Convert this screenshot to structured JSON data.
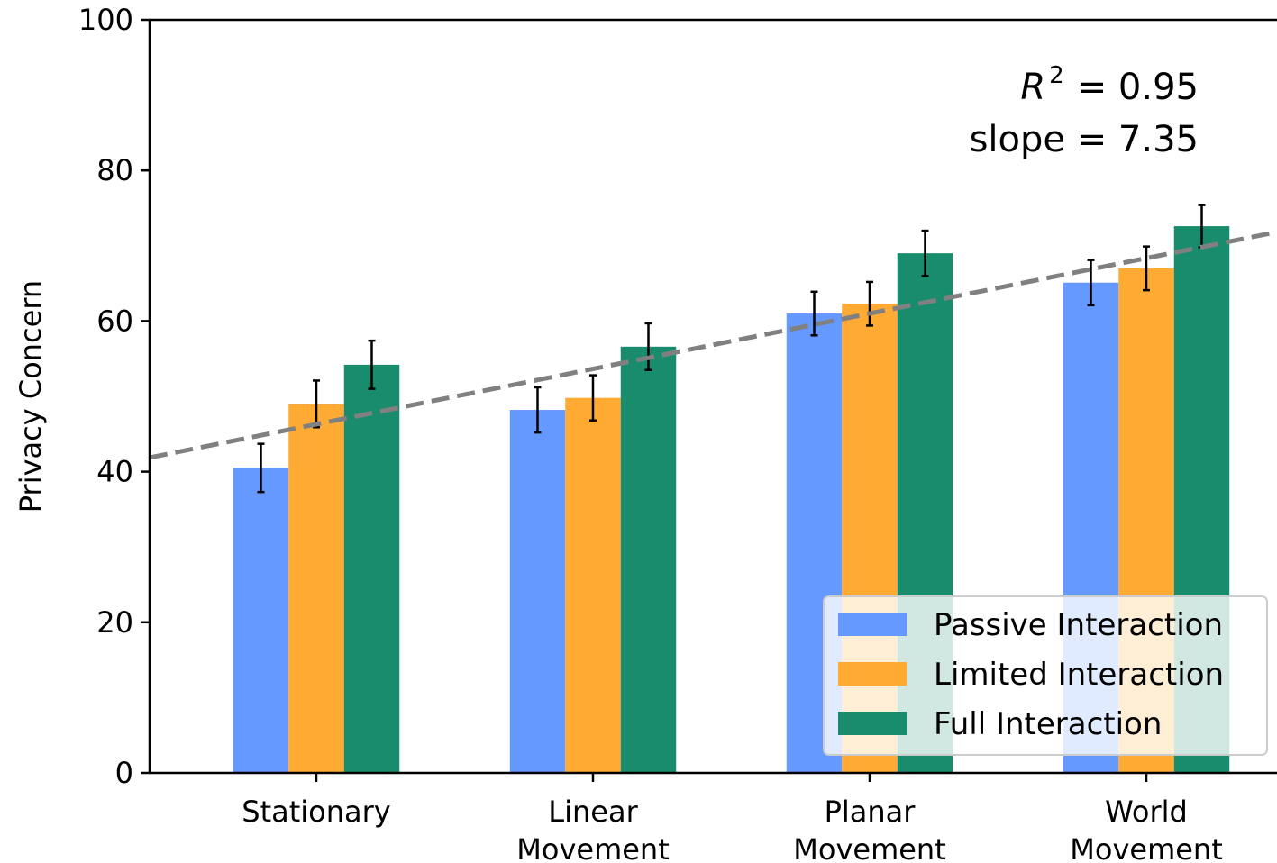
{
  "chart_data": {
    "type": "bar",
    "ylabel": "Privacy Concern",
    "xlabel": "",
    "ylim": [
      0,
      100
    ],
    "yticks": [
      0,
      20,
      40,
      60,
      80,
      100
    ],
    "categories": [
      [
        "Stationary"
      ],
      [
        "Linear",
        "Movement"
      ],
      [
        "Planar",
        "Movement"
      ],
      [
        "World",
        "Movement"
      ]
    ],
    "series": [
      {
        "name": "Passive Interaction",
        "color": "#6699ff",
        "values": [
          40.5,
          48.2,
          61.0,
          65.1
        ],
        "errors": [
          3.2,
          3.0,
          2.9,
          3.0
        ]
      },
      {
        "name": "Limited Interaction",
        "color": "#ffaa33",
        "values": [
          49.0,
          49.8,
          62.3,
          67.0
        ],
        "errors": [
          3.1,
          3.0,
          2.9,
          2.9
        ]
      },
      {
        "name": "Full Interaction",
        "color": "#1a8c6e",
        "values": [
          54.2,
          56.6,
          69.0,
          72.6
        ],
        "errors": [
          3.2,
          3.1,
          3.0,
          2.8
        ]
      }
    ],
    "trendline": {
      "slope": 7.35,
      "intercept": 46.3,
      "color": "#808080",
      "style": "dashed"
    },
    "annotation": {
      "r2_symbol": "R",
      "r2_exponent": "2",
      "r2_value": "= 0.95",
      "slope_text": "slope = 7.35"
    },
    "legend_position": "lower-right",
    "grid": false
  }
}
